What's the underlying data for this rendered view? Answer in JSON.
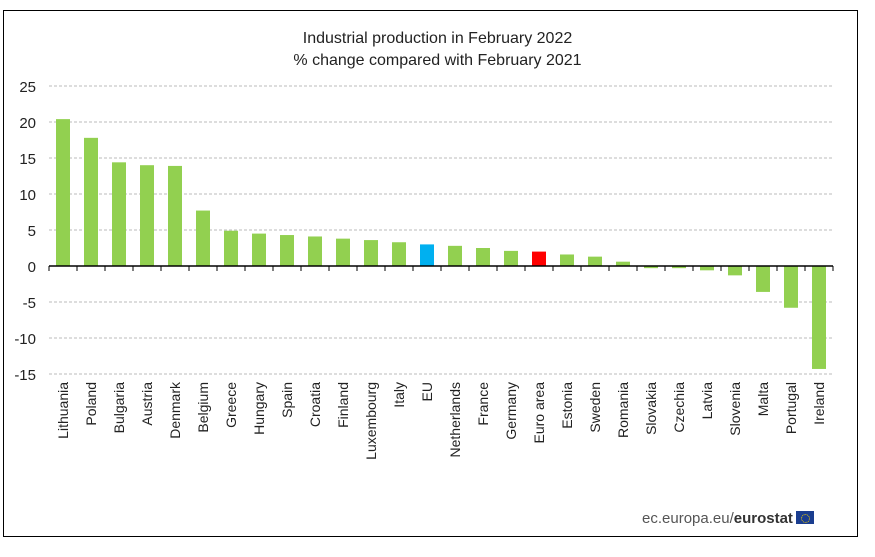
{
  "chart_data": {
    "type": "bar",
    "title": "Industrial production in February 2022",
    "subtitle": "% change compared with February 2021",
    "categories": [
      "Lithuania",
      "Poland",
      "Bulgaria",
      "Austria",
      "Denmark",
      "Belgium",
      "Greece",
      "Hungary",
      "Spain",
      "Croatia",
      "Finland",
      "Luxembourg",
      "Italy",
      "EU",
      "Netherlands",
      "France",
      "Germany",
      "Euro area",
      "Estonia",
      "Sweden",
      "Romania",
      "Slovakia",
      "Czechia",
      "Latvia",
      "Slovenia",
      "Malta",
      "Portugal",
      "Ireland"
    ],
    "values": [
      20.4,
      17.8,
      14.4,
      14.0,
      13.9,
      7.7,
      4.9,
      4.5,
      4.3,
      4.1,
      3.8,
      3.6,
      3.3,
      3.0,
      2.8,
      2.5,
      2.1,
      2.0,
      1.6,
      1.3,
      0.6,
      -0.3,
      -0.3,
      -0.6,
      -1.3,
      -3.6,
      -5.8,
      -14.3
    ],
    "ylim": [
      -15,
      25
    ],
    "yticks": [
      25,
      20,
      15,
      10,
      5,
      0,
      -5,
      -10,
      -15
    ],
    "grid": true,
    "legend": "none",
    "colors": {
      "default": "#92d050",
      "EU": "#00b0f0",
      "Euro area": "#ff0000"
    }
  },
  "footer": {
    "site": "ec.europa.eu/",
    "brand": "eurostat"
  }
}
